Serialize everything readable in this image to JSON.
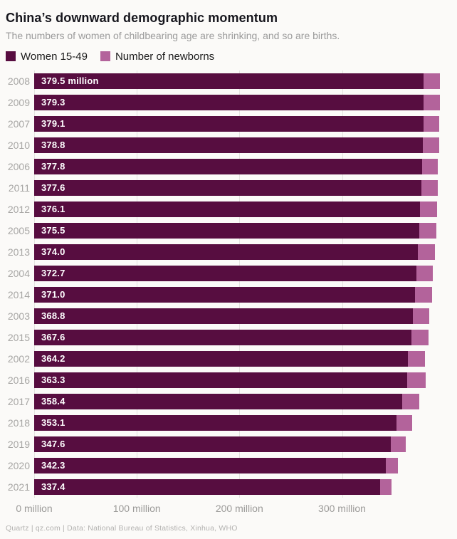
{
  "header": {
    "title": "China’s downward demographic momentum",
    "subtitle": "The numbers of women of childbearing age are shrinking, and so are births."
  },
  "legend": [
    {
      "label": "Women 15-49",
      "color": "#570d40"
    },
    {
      "label": "Number of newborns",
      "color": "#b3639b"
    }
  ],
  "chart_data": {
    "type": "bar",
    "orientation": "horizontal",
    "stacked": true,
    "unit": "million people",
    "xlim": [
      0,
      412
    ],
    "tick_values": [
      0,
      100,
      200,
      300
    ],
    "tick_labels": [
      "0 million",
      "100 million",
      "200 million",
      "300 million"
    ],
    "grid": true,
    "legend_position": "top",
    "categories": [
      "2008",
      "2009",
      "2007",
      "2010",
      "2006",
      "2011",
      "2012",
      "2005",
      "2013",
      "2004",
      "2014",
      "2003",
      "2015",
      "2002",
      "2016",
      "2017",
      "2018",
      "2019",
      "2020",
      "2021"
    ],
    "series": [
      {
        "name": "Women 15-49",
        "color": "#570d40",
        "values": [
          379.5,
          379.3,
          379.1,
          378.8,
          377.8,
          377.6,
          376.1,
          375.5,
          374.0,
          372.7,
          371.0,
          368.8,
          367.6,
          364.2,
          363.3,
          358.4,
          353.1,
          347.6,
          342.3,
          337.4
        ]
      },
      {
        "name": "Number of newborns",
        "color": "#b3639b",
        "values": [
          16.1,
          15.9,
          15.9,
          15.9,
          15.8,
          16.0,
          16.4,
          16.2,
          16.4,
          15.9,
          16.9,
          16.0,
          16.6,
          16.5,
          17.9,
          17.2,
          15.2,
          14.7,
          12.0,
          10.6
        ]
      }
    ],
    "bar_labels": [
      "379.5 million",
      "379.3",
      "379.1",
      "378.8",
      "377.8",
      "377.6",
      "376.1",
      "375.5",
      "374.0",
      "372.7",
      "371.0",
      "368.8",
      "367.6",
      "364.2",
      "363.3",
      "358.4",
      "353.1",
      "347.6",
      "342.3",
      "337.4"
    ]
  },
  "footer": {
    "text": "Quartz | qz.com | Data: National Bureau of Statistics, Xinhua, WHO"
  }
}
